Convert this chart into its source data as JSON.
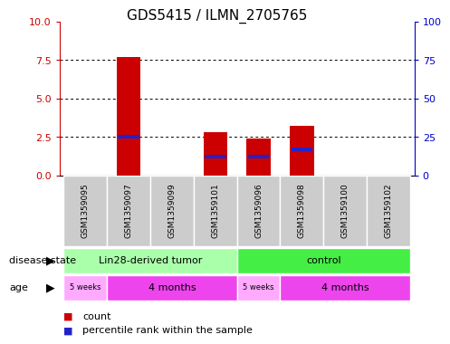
{
  "title": "GDS5415 / ILMN_2705765",
  "samples": [
    "GSM1359095",
    "GSM1359097",
    "GSM1359099",
    "GSM1359101",
    "GSM1359096",
    "GSM1359098",
    "GSM1359100",
    "GSM1359102"
  ],
  "count_values": [
    0,
    7.7,
    0,
    2.8,
    2.4,
    3.2,
    0,
    0
  ],
  "percentile_values": [
    0,
    25,
    0,
    12,
    12,
    17,
    0,
    0
  ],
  "ylim_left": [
    0,
    10
  ],
  "ylim_right": [
    0,
    100
  ],
  "yticks_left": [
    0,
    2.5,
    5,
    7.5,
    10
  ],
  "yticks_right": [
    0,
    25,
    50,
    75,
    100
  ],
  "bar_color": "#cc0000",
  "percentile_color": "#2222cc",
  "bar_width": 0.55,
  "disease_state_groups": [
    {
      "label": "Lin28-derived tumor",
      "start": 0,
      "end": 4,
      "color": "#aaffaa"
    },
    {
      "label": "control",
      "start": 4,
      "end": 8,
      "color": "#44ee44"
    }
  ],
  "age_groups": [
    {
      "label": "5 weeks",
      "start": 0,
      "end": 1,
      "color": "#ffaaff"
    },
    {
      "label": "4 months",
      "start": 1,
      "end": 4,
      "color": "#ee44ee"
    },
    {
      "label": "5 weeks",
      "start": 4,
      "end": 5,
      "color": "#ffaaff"
    },
    {
      "label": "4 months",
      "start": 5,
      "end": 8,
      "color": "#ee44ee"
    }
  ],
  "legend_count_color": "#cc0000",
  "legend_percentile_color": "#2222cc",
  "bg_color": "#ffffff",
  "plot_bg_color": "#ffffff",
  "label_row1": "disease state",
  "label_row2": "age",
  "left_axis_color": "#cc0000",
  "right_axis_color": "#0000cc",
  "sample_box_color": "#cccccc",
  "title_fontsize": 11
}
